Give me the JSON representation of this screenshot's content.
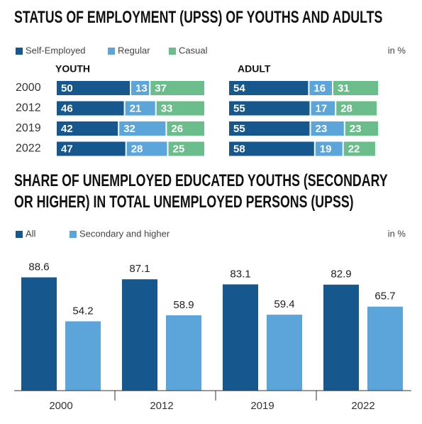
{
  "chart_data": [
    {
      "type": "stacked-bar-h",
      "title": "STATUS OF EMPLOYMENT (UPSS) OF YOUTHS AND ADULTS",
      "unit": "in %",
      "categories": [
        "2000",
        "2012",
        "2019",
        "2022"
      ],
      "series": [
        {
          "name": "Self-Employed",
          "color": "#16588e"
        },
        {
          "name": "Regular",
          "color": "#5ba5db"
        },
        {
          "name": "Casual",
          "color": "#6bbd8b"
        }
      ],
      "panels": [
        {
          "label": "YOUTH",
          "values": [
            [
              50,
              46,
              42,
              47
            ],
            [
              13,
              21,
              32,
              28
            ],
            [
              37,
              33,
              26,
              25
            ]
          ]
        },
        {
          "label": "ADULT",
          "values": [
            [
              54,
              55,
              55,
              58
            ],
            [
              16,
              17,
              23,
              19
            ],
            [
              31,
              28,
              23,
              22
            ]
          ]
        }
      ]
    },
    {
      "type": "bar",
      "title": "SHARE OF UNEMPLOYED EDUCATED YOUTHS (SECONDARY OR HIGHER) IN TOTAL UNEMPLOYED PERSONS (UPSS)",
      "unit": "in %",
      "categories": [
        "2000",
        "2012",
        "2019",
        "2022"
      ],
      "series": [
        {
          "name": "All",
          "color": "#16588e",
          "values": [
            88.6,
            87.1,
            83.1,
            82.9
          ]
        },
        {
          "name": "Secondary and higher",
          "color": "#5ba5db",
          "values": [
            54.2,
            58.9,
            59.4,
            65.7
          ]
        }
      ]
    }
  ]
}
